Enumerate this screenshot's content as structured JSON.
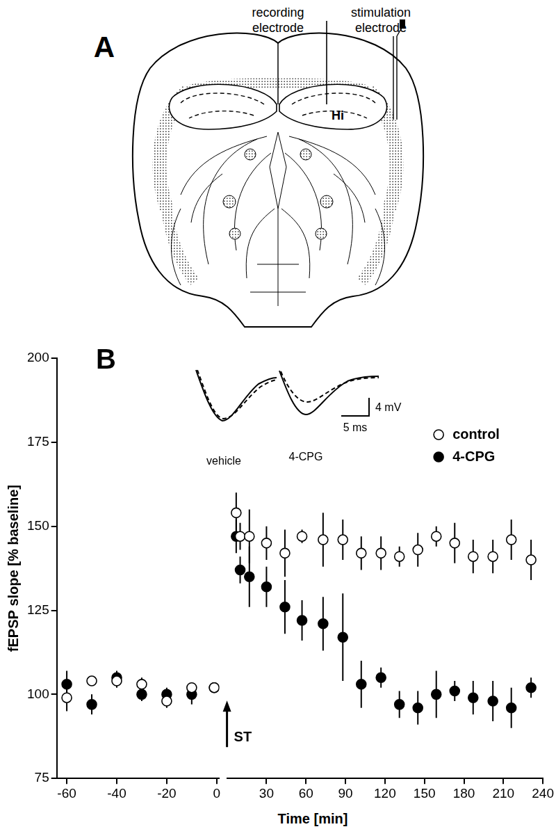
{
  "panel_a": {
    "label": "A",
    "recording_electrode": [
      "recording",
      "electrode"
    ],
    "stimulation_electrode": [
      "stimulation",
      "electrode"
    ],
    "region": "Hi"
  },
  "panel_b": {
    "label": "B",
    "inset": {
      "traces": [
        "vehicle",
        "4-CPG"
      ],
      "scale_bar": [
        "4 mV",
        "5 ms"
      ]
    }
  },
  "chart_data": [
    {
      "type": "scatter",
      "ylabel": "fEPSP slope [% baseline]",
      "ylim": [
        75,
        200
      ],
      "yticks": [
        75,
        100,
        125,
        150,
        175,
        200
      ],
      "xlim": [
        -64,
        1
      ],
      "xticks": [
        -60,
        -40,
        -20,
        0
      ],
      "grid": false,
      "x": [
        -60,
        -50,
        -40,
        -30,
        -20,
        -10,
        -1
      ],
      "series": [
        {
          "name": "control",
          "color": "#000000",
          "marker": "open_circle",
          "values": [
            99,
            104,
            104,
            103,
            98,
            102,
            102
          ],
          "errors": [
            4,
            1,
            2,
            2,
            2,
            1,
            1
          ]
        },
        {
          "name": "4-CPG",
          "color": "#000000",
          "marker": "filled_circle",
          "values": [
            103,
            97,
            105,
            100,
            100,
            100,
            102
          ],
          "errors": [
            4,
            3,
            2,
            2,
            2,
            3,
            1
          ]
        }
      ]
    },
    {
      "type": "scatter",
      "xlabel": "Time [min]",
      "ylim": [
        75,
        200
      ],
      "xlim": [
        0,
        240
      ],
      "xticks": [
        30,
        60,
        90,
        120,
        150,
        180,
        210,
        240
      ],
      "grid": false,
      "legend": "upper right",
      "annotations": [
        {
          "text": "ST",
          "x": 0
        }
      ],
      "x": [
        7,
        10,
        17,
        30,
        44,
        57,
        73,
        88,
        102,
        117,
        131,
        145,
        159,
        173,
        187,
        202,
        216,
        231
      ],
      "series": [
        {
          "name": "control",
          "color": "#000000",
          "marker": "open_circle",
          "values": [
            154,
            147,
            147,
            145,
            142,
            147,
            146,
            146,
            142,
            142,
            141,
            143,
            147,
            145,
            141,
            141,
            146,
            140
          ],
          "errors": [
            6,
            4,
            8,
            5,
            7,
            2,
            8,
            6,
            5,
            5,
            3,
            5,
            3,
            6,
            5,
            5,
            6,
            6
          ]
        },
        {
          "name": "4-CPG",
          "color": "#000000",
          "marker": "filled_circle",
          "values": [
            147,
            137,
            135,
            132,
            126,
            122,
            121,
            117,
            103,
            105,
            97,
            96,
            100,
            101,
            99,
            98,
            96,
            102
          ],
          "errors": [
            5,
            4,
            9,
            6,
            8,
            6,
            8,
            13,
            7,
            3,
            4,
            5,
            7,
            3,
            5,
            6,
            6,
            3
          ]
        }
      ]
    }
  ]
}
